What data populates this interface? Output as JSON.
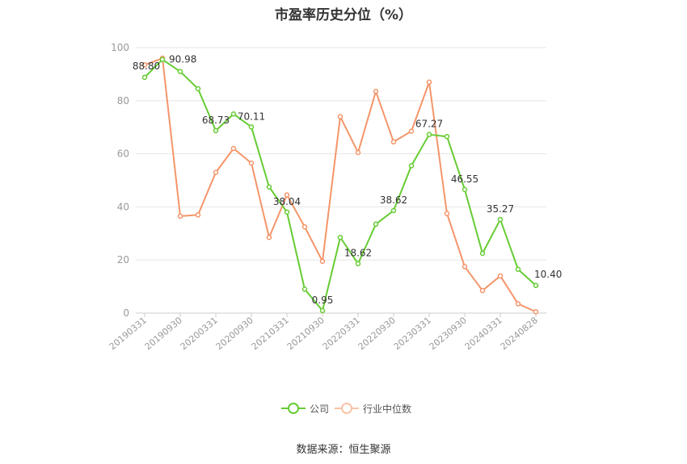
{
  "title": "市盈率历史分位（%）",
  "source": "数据来源：恒生聚源",
  "legend": {
    "company": "公司",
    "industry": "行业中位数"
  },
  "colors": {
    "company": "#66cc33",
    "industry": "#f4956a",
    "axis": "#999999",
    "grid": "#e6e6e6"
  },
  "chart_data": {
    "type": "line",
    "title": "市盈率历史分位（%）",
    "ylim": [
      0,
      100
    ],
    "yticks": [
      0,
      20,
      40,
      60,
      80,
      100
    ],
    "x": [
      "20190331",
      "20190630",
      "20190930",
      "20191231",
      "20200331",
      "20200630",
      "20200930",
      "20201231",
      "20210331",
      "20210630",
      "20210930",
      "20211231",
      "20220331",
      "20220630",
      "20220930",
      "20221231",
      "20230331",
      "20230630",
      "20230930",
      "20231231",
      "20240331",
      "20240630",
      "20240828"
    ],
    "xtick_labels": [
      "20190331",
      "20190930",
      "20200331",
      "20200930",
      "20210331",
      "20210930",
      "20220331",
      "20220930",
      "20230331",
      "20230930",
      "20240331",
      "20240828"
    ],
    "series": [
      {
        "name": "公司",
        "key": "company",
        "values": [
          88.8,
          95.5,
          90.98,
          84.5,
          68.73,
          75.0,
          70.11,
          47.5,
          38.04,
          9.0,
          0.95,
          28.5,
          18.62,
          33.5,
          38.62,
          55.5,
          67.27,
          66.5,
          46.55,
          22.5,
          35.27,
          16.5,
          10.4
        ],
        "labels": {
          "0": "88.80",
          "2": "90.98",
          "4": "68.73",
          "6": "70.11",
          "8": "38.04",
          "10": "0.95",
          "12": "18.62",
          "14": "38.62",
          "16": "67.27",
          "18": "46.55",
          "20": "35.27",
          "22": "10.40"
        }
      },
      {
        "name": "行业中位数",
        "key": "industry",
        "values": [
          93.5,
          96.0,
          36.5,
          37.0,
          53.0,
          62.0,
          56.5,
          28.5,
          44.5,
          32.5,
          19.5,
          74.0,
          60.5,
          83.5,
          64.5,
          68.5,
          87.0,
          37.5,
          17.5,
          8.5,
          14.0,
          3.5,
          0.5
        ]
      }
    ]
  }
}
